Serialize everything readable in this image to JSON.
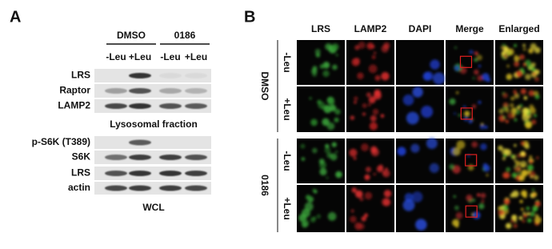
{
  "panel_a": {
    "label": "A",
    "groups": [
      {
        "name": "DMSO",
        "lanes": [
          "-Leu",
          "+Leu"
        ]
      },
      {
        "name": "0186",
        "lanes": [
          "-Leu",
          "+Leu"
        ]
      }
    ],
    "sections": [
      {
        "blots": [
          "LRS",
          "Raptor",
          "LAMP2"
        ],
        "caption": "Lysosomal fraction"
      },
      {
        "blots": [
          "p-S6K (T389)",
          "S6K",
          "LRS",
          "actin"
        ],
        "caption": "WCL"
      }
    ]
  },
  "panel_b": {
    "label": "B",
    "columns": [
      "LRS",
      "LAMP2",
      "DAPI",
      "Merge",
      "Enlarged"
    ],
    "groups": [
      {
        "name": "DMSO",
        "rows": [
          "-Leu",
          "+Leu"
        ]
      },
      {
        "name": "0186",
        "rows": [
          "-Leu",
          "+Leu"
        ]
      }
    ]
  }
}
